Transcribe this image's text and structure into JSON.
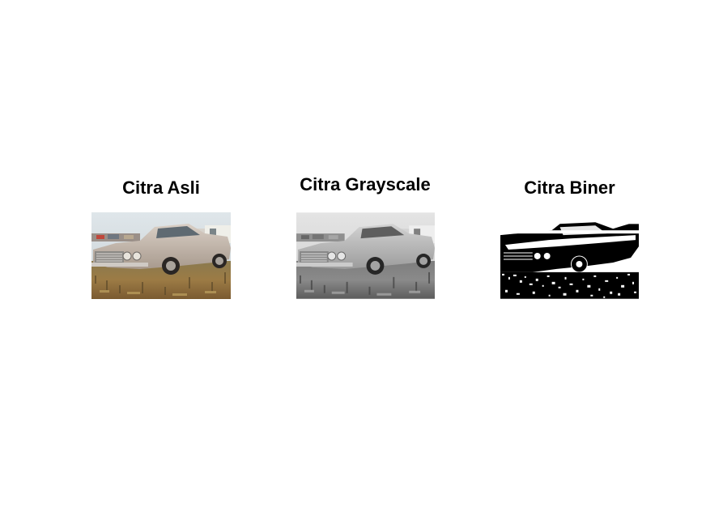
{
  "figure": {
    "panels": [
      {
        "title": "Citra Asli",
        "image_kind": "color-photo-vintage-car"
      },
      {
        "title": "Citra Grayscale",
        "image_kind": "grayscale-photo-vintage-car"
      },
      {
        "title": "Citra Biner",
        "image_kind": "binary-photo-vintage-car"
      }
    ]
  },
  "colors": {
    "background": "#ffffff",
    "title_text": "#000000"
  }
}
